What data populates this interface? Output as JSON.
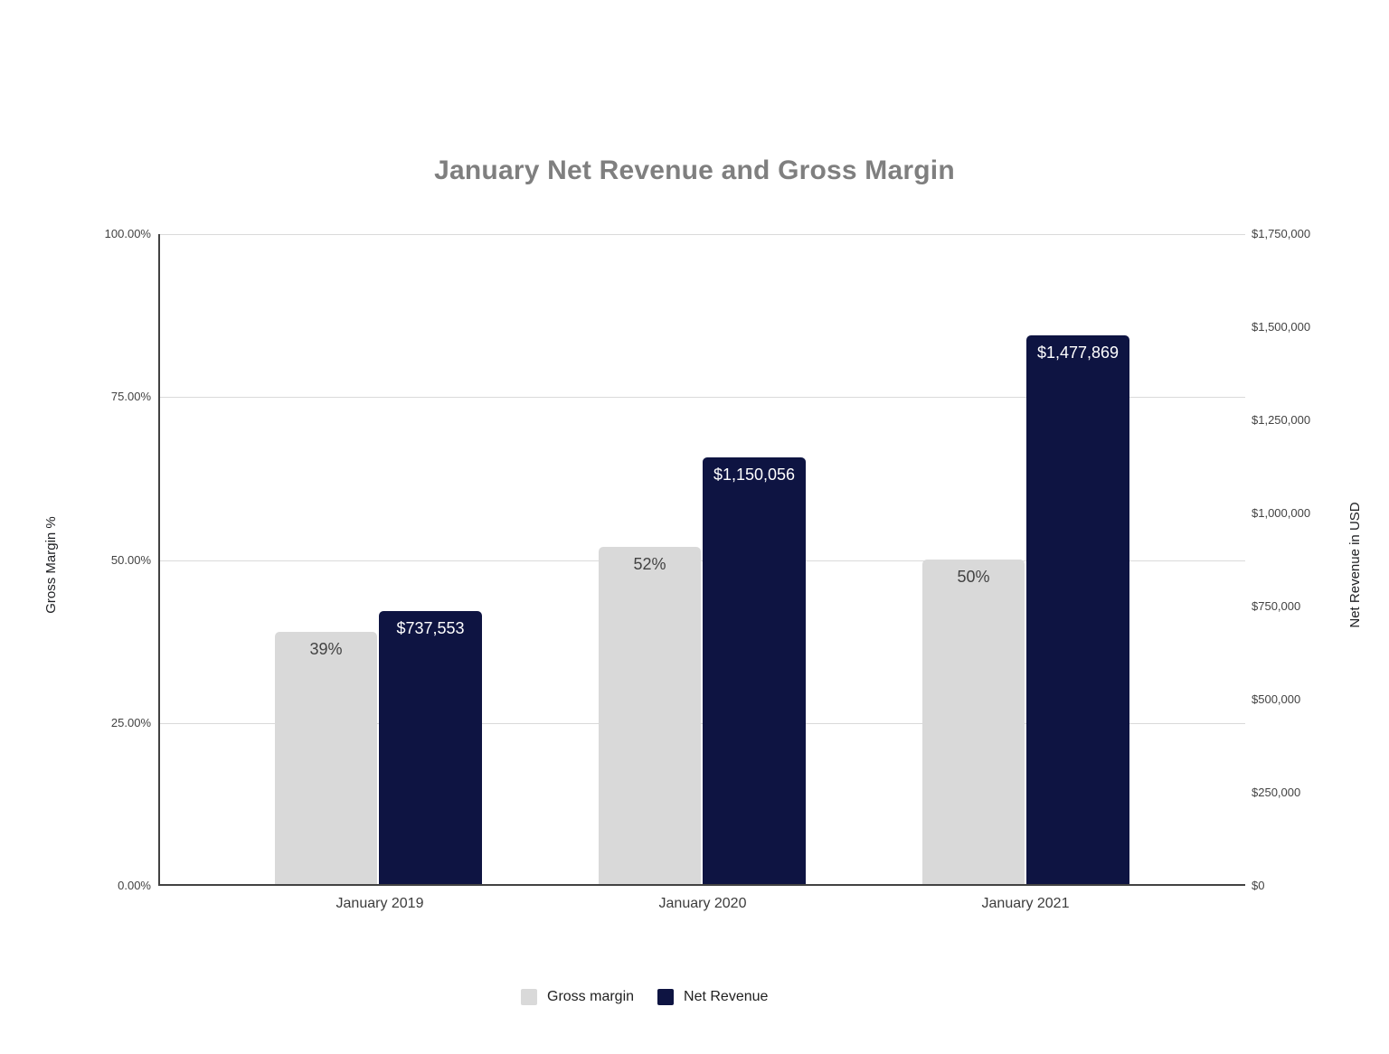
{
  "chart_data": {
    "type": "bar",
    "title": "January Net Revenue and Gross Margin",
    "categories": [
      "January 2019",
      "January 2020",
      "January 2021"
    ],
    "series": [
      {
        "name": "Gross margin",
        "axis": "left",
        "color": "#d9d9d9",
        "label_color": "#424242",
        "values": [
          0.39,
          0.52,
          0.5
        ],
        "value_labels": [
          "39%",
          "52%",
          "50%"
        ]
      },
      {
        "name": "Net Revenue",
        "axis": "right",
        "color": "#0e1442",
        "label_color": "#ffffff",
        "values": [
          737553,
          1150056,
          1477869
        ],
        "value_labels": [
          "$737,553",
          "$1,150,056",
          "$1,477,869"
        ]
      }
    ],
    "left_axis": {
      "title": "Gross Margin %",
      "min": 0,
      "max": 1,
      "ticks": [
        "100.00%",
        "75.00%",
        "50.00%",
        "25.00%",
        "0.00%"
      ]
    },
    "right_axis": {
      "title": "Net Revenue in USD",
      "min": 0,
      "max": 1750000,
      "ticks": [
        "$1,750,000",
        "$1,500,000",
        "$1,250,000",
        "$1,000,000",
        "$750,000",
        "$500,000",
        "$250,000",
        "$0"
      ]
    },
    "legend": {
      "position": "bottom",
      "items": [
        "Gross margin",
        "Net Revenue"
      ]
    },
    "grid": true,
    "background": "#ffffff"
  }
}
